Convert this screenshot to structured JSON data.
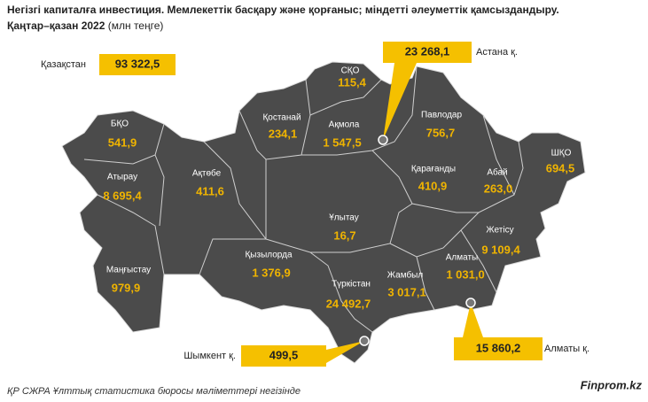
{
  "header": {
    "title": "Негізгі капиталға инвестиция. Мемлекеттік басқару және қорғаныс; міндетті әлеуметтік қамсыздандыру.",
    "period": "Қаңтар–қазан 2022",
    "unit": "(млн теңге)"
  },
  "total": {
    "name": "Қазақстан",
    "value": "93 322,5"
  },
  "regions": [
    {
      "name": "БҚО",
      "value": "541,9"
    },
    {
      "name": "Атырау",
      "value": "8 695,4"
    },
    {
      "name": "Маңғыстау",
      "value": "979,9"
    },
    {
      "name": "Ақтөбе",
      "value": "411,6"
    },
    {
      "name": "Қостанай",
      "value": "234,1"
    },
    {
      "name": "СҚО",
      "value": "115,4"
    },
    {
      "name": "Ақмола",
      "value": "1 547,5"
    },
    {
      "name": "Павлодар",
      "value": "756,7"
    },
    {
      "name": "ШҚО",
      "value": "694,5"
    },
    {
      "name": "Қарағанды",
      "value": "410,9"
    },
    {
      "name": "Абай",
      "value": "263,0"
    },
    {
      "name": "Ұлытау",
      "value": "16,7"
    },
    {
      "name": "Қызылорда",
      "value": "1 376,9"
    },
    {
      "name": "Түркістан",
      "value": "24 492,7"
    },
    {
      "name": "Жамбыл",
      "value": "3 017,1"
    },
    {
      "name": "Алматы",
      "value": "1 031,0"
    },
    {
      "name": "Жетісу",
      "value": "9 109,4"
    }
  ],
  "cities": [
    {
      "name": "Астана қ.",
      "value": "23 268,1"
    },
    {
      "name": "Шымкент қ.",
      "value": "499,5"
    },
    {
      "name": "Алматы қ.",
      "value": "15 860,2"
    }
  ],
  "footer": {
    "source": "ҚР СЖРА Ұлттық статистика бюросы мәліметтері негізінде",
    "brand": "Finprom.kz"
  }
}
